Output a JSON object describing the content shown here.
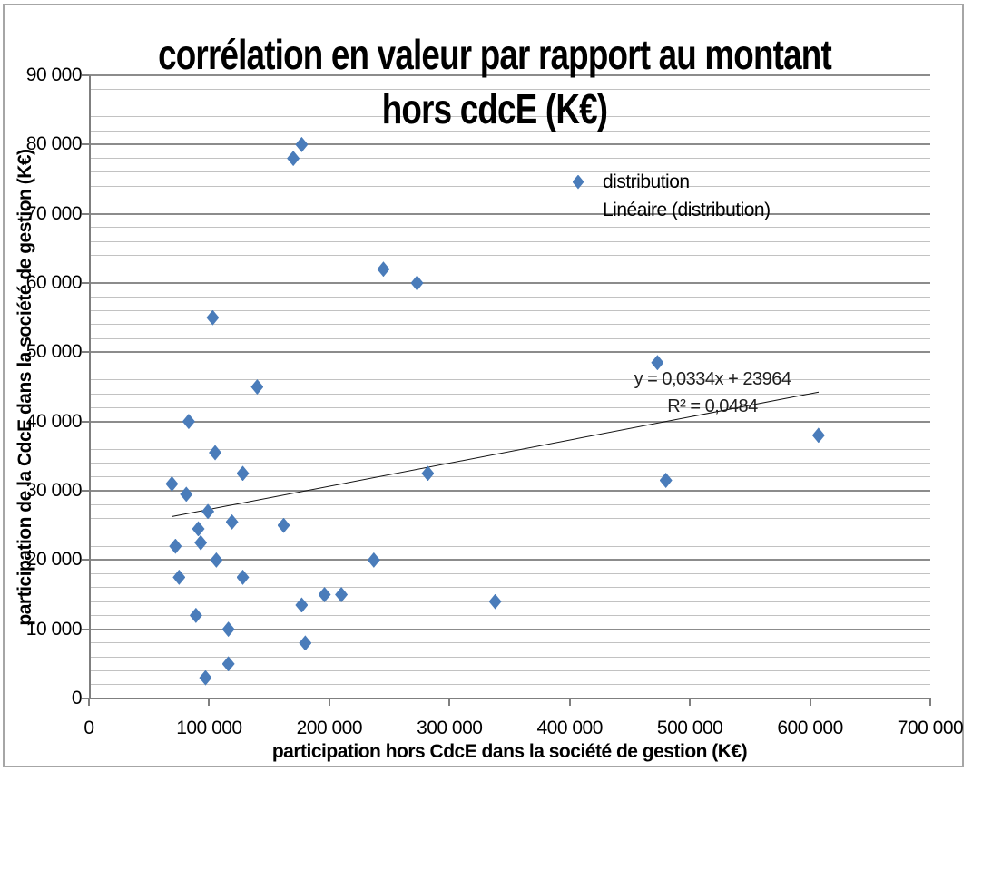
{
  "chart_data": {
    "type": "scatter",
    "title": "corrélation en valeur par rapport au montant hors cdcE (K€)",
    "title_lines": [
      "corrélation en valeur par rapport au montant",
      "hors cdcE (K€)"
    ],
    "xlabel": "participation hors CdcE dans la société de gestion  (K€)",
    "ylabel": "participation de la CdcE dans la société de gestion (K€)",
    "xlim": [
      0,
      700000
    ],
    "ylim": [
      0,
      90000
    ],
    "x_major_step": 100000,
    "y_major_step": 10000,
    "y_minor_step": 2000,
    "grid": "horizontal-minor-and-major",
    "legend_position": "inside-upper-right",
    "x_tick_labels": [
      "0",
      "100 000",
      "200 000",
      "300 000",
      "400 000",
      "500 000",
      "600 000",
      "700 000"
    ],
    "y_tick_labels": [
      "0",
      "10 000",
      "20 000",
      "30 000",
      "40 000",
      "50 000",
      "60 000",
      "70 000",
      "80 000",
      "90 000"
    ],
    "series": [
      {
        "name": "distribution",
        "marker": "diamond",
        "marker_color": "#4a7cba",
        "points": [
          [
            170000,
            78000
          ],
          [
            177000,
            80000
          ],
          [
            245000,
            62000
          ],
          [
            273000,
            60000
          ],
          [
            103000,
            55000
          ],
          [
            140000,
            45000
          ],
          [
            83000,
            40000
          ],
          [
            473000,
            48500
          ],
          [
            607000,
            38000
          ],
          [
            105000,
            35500
          ],
          [
            128000,
            32500
          ],
          [
            282000,
            32500
          ],
          [
            480000,
            31500
          ],
          [
            69000,
            31000
          ],
          [
            81000,
            29500
          ],
          [
            99000,
            27000
          ],
          [
            91000,
            24500
          ],
          [
            119000,
            25500
          ],
          [
            162000,
            25000
          ],
          [
            93000,
            22500
          ],
          [
            72000,
            22000
          ],
          [
            106000,
            20000
          ],
          [
            237000,
            20000
          ],
          [
            75000,
            17500
          ],
          [
            128000,
            17500
          ],
          [
            177000,
            13500
          ],
          [
            196000,
            15000
          ],
          [
            210000,
            15000
          ],
          [
            338000,
            14000
          ],
          [
            89000,
            12000
          ],
          [
            116000,
            10000
          ],
          [
            180000,
            8000
          ],
          [
            116000,
            5000
          ],
          [
            97000,
            3000
          ]
        ]
      }
    ],
    "trendline": {
      "name": "Linéaire (distribution)",
      "equation": "y = 0,0334x + 23964",
      "r_squared": "R² = 0,0484",
      "slope": 0.0334,
      "intercept": 23964,
      "x_start": 69000,
      "x_end": 607000,
      "color": "#111111"
    },
    "colors": {
      "marker": "#4a7cba",
      "minor_gridline": "#c2c2c2",
      "major_gridline": "#8c8c8c",
      "axis_line": "#7f7f7f",
      "chart_border": "#a6a6a6"
    }
  }
}
